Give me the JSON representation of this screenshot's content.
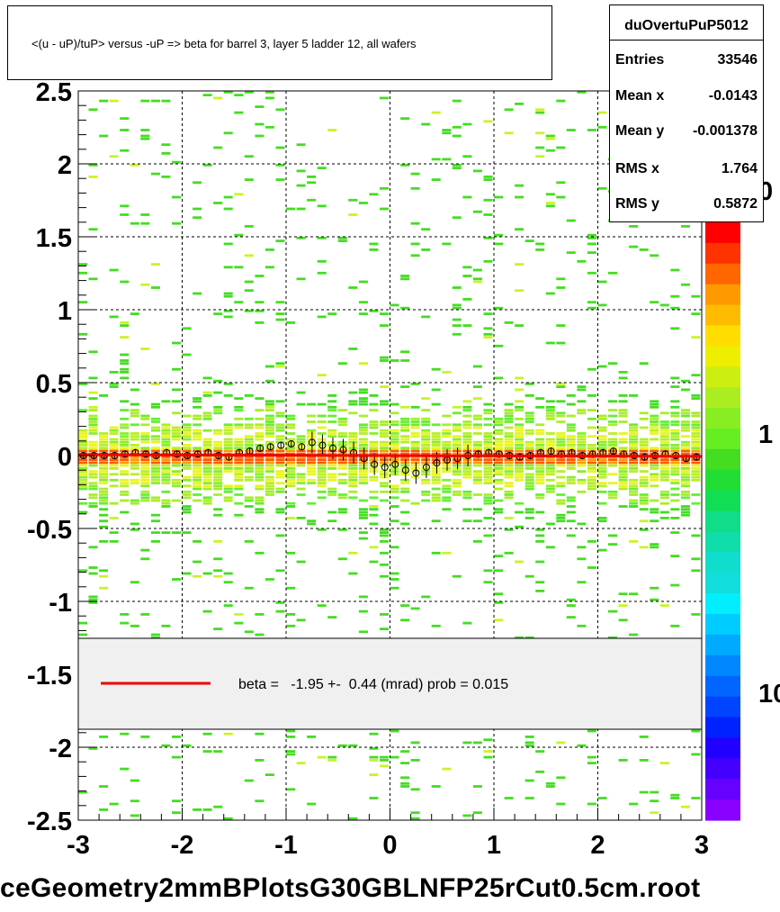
{
  "title": "<(u - uP)/tuP> versus  -uP => beta for barrel 3, layer 5 ladder 12, all wafers",
  "stats": {
    "name": "duOvertuPuP5012",
    "rows": [
      {
        "label": "Entries",
        "value": "33546"
      },
      {
        "label": "Mean x",
        "value": "-0.0143"
      },
      {
        "label": "Mean y",
        "value": "-0.001378"
      },
      {
        "label": "RMS x",
        "value": "1.764"
      },
      {
        "label": "RMS y",
        "value": "0.5872"
      }
    ]
  },
  "fit_legend": "beta =   -1.95 +-  0.44 (mrad) prob = 0.015",
  "footer": "ceGeometry2mmBPlotsG30GBLNFP25rCut0.5cm.root",
  "colors": {
    "fit_line": "#ee0000",
    "legend_bg": "#f0f0f0"
  },
  "chart_data": {
    "type": "heatmap",
    "xlim": [
      -3,
      3
    ],
    "ylim": [
      -2.5,
      2.5
    ],
    "x_ticks": [
      "-3",
      "-2",
      "-1",
      "0",
      "1",
      "2",
      "3"
    ],
    "y_ticks": [
      "-2.5",
      "-2",
      "-1.5",
      "-1",
      "-0.5",
      "0",
      "0.5",
      "1",
      "1.5",
      "2",
      "2.5"
    ],
    "z_scale": "log",
    "z_tick_labels": [
      "10",
      "1",
      "0"
    ],
    "grid": true,
    "fit_line": {
      "slope": -0.00195,
      "intercept": 0.0
    },
    "profile": {
      "x": [
        -2.95,
        -2.85,
        -2.75,
        -2.65,
        -2.55,
        -2.45,
        -2.35,
        -2.25,
        -2.15,
        -2.05,
        -1.95,
        -1.85,
        -1.75,
        -1.65,
        -1.55,
        -1.45,
        -1.35,
        -1.25,
        -1.15,
        -1.05,
        -0.95,
        -0.85,
        -0.75,
        -0.65,
        -0.55,
        -0.45,
        -0.35,
        -0.25,
        -0.15,
        -0.05,
        0.05,
        0.15,
        0.25,
        0.35,
        0.45,
        0.55,
        0.65,
        0.75,
        0.85,
        0.95,
        1.05,
        1.15,
        1.25,
        1.35,
        1.45,
        1.55,
        1.65,
        1.75,
        1.85,
        1.95,
        2.05,
        2.15,
        2.25,
        2.35,
        2.45,
        2.55,
        2.65,
        2.75,
        2.85,
        2.95
      ],
      "y": [
        0.0,
        0.0,
        0.0,
        0.0,
        0.01,
        0.02,
        0.01,
        0.0,
        0.02,
        0.01,
        0.0,
        0.01,
        0.02,
        0.0,
        -0.01,
        0.02,
        0.03,
        0.05,
        0.06,
        0.07,
        0.08,
        0.06,
        0.09,
        0.07,
        0.05,
        0.04,
        0.02,
        -0.02,
        -0.06,
        -0.08,
        -0.06,
        -0.1,
        -0.12,
        -0.08,
        -0.05,
        -0.03,
        -0.02,
        0.0,
        0.01,
        0.02,
        0.01,
        0.0,
        -0.01,
        0.0,
        0.02,
        0.03,
        0.01,
        0.02,
        0.0,
        0.01,
        0.02,
        0.03,
        0.01,
        0.0,
        -0.01,
        0.0,
        0.01,
        0.0,
        -0.02,
        -0.01
      ]
    }
  }
}
